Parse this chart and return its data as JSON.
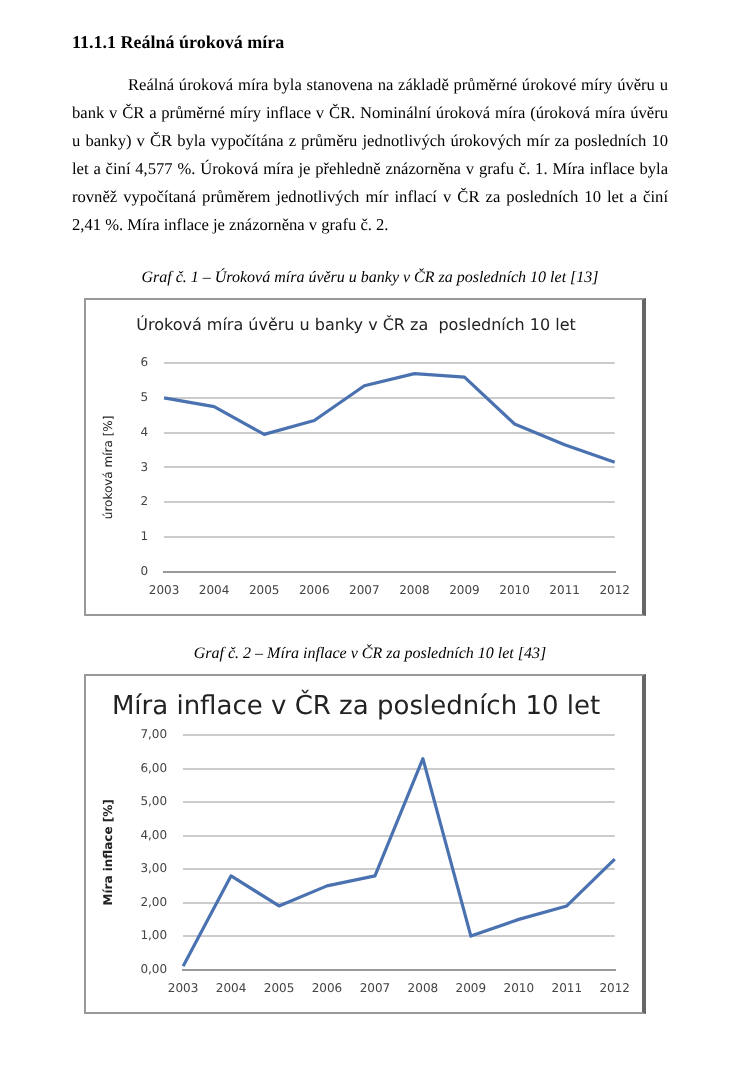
{
  "chart_data": [
    {
      "type": "line",
      "title": "Úroková míra úvěru u banky v ČR za  posledních 10 let",
      "ylabel": "úroková míra [%]",
      "annotations": [
        "11.1.1 Reálná úroková míra",
        "Reálná úroková míra byla stanovena na základě průměrné úrokové míry úvěru u bank v ČR a průměrné míry inflace v ČR. Nominální úroková míra (úroková míra úvěru u banky) v ČR byla vypočítána z průměru jednotlivých úrokových mír za posledních 10 let a činí 4,577 %. Úroková míra je přehledně znázorněna v grafu č. 1. Míra inflace byla rovněž vypočítaná průměrem jednotlivých mír inflací v ČR za posledních 10 let a činí 2,41 %. Míra inflace je znázorněna v grafu č. 2.",
        "Graf č. 1 – Úroková míra úvěru u banky v ČR za posledních 10 let [13]"
      ],
      "categories": [
        "2003",
        "2004",
        "2005",
        "2006",
        "2007",
        "2008",
        "2009",
        "2010",
        "2011",
        "2012"
      ],
      "series": [
        {
          "color": "#4a72b0",
          "values": [
            5.0,
            4.75,
            3.95,
            4.35,
            5.35,
            5.7,
            5.6,
            4.25,
            3.65,
            3.15
          ]
        }
      ],
      "ylim": [
        0,
        6
      ],
      "yticks": [
        0,
        1,
        2,
        3,
        4,
        5,
        6
      ],
      "grid": "y",
      "marker": "none"
    },
    {
      "type": "line",
      "title": "Míra inflace v ČR za posledních 10 let",
      "ylabel": "Míra inflace [%]",
      "annotations": [
        "Graf č. 2 – Míra inflace v ČR za posledních 10 let [43]"
      ],
      "categories": [
        "2003",
        "2004",
        "2005",
        "2006",
        "2007",
        "2008",
        "2009",
        "2010",
        "2011",
        "2012"
      ],
      "series": [
        {
          "color": "#4a72b0",
          "values": [
            0.1,
            2.8,
            1.9,
            2.5,
            2.8,
            6.3,
            1.0,
            1.5,
            1.9,
            3.3
          ]
        }
      ],
      "ylim": [
        0,
        7
      ],
      "yticks": [
        {
          "value": 0,
          "label": "0,00"
        },
        {
          "value": 1,
          "label": "1,00"
        },
        {
          "value": 2,
          "label": "2,00"
        },
        {
          "value": 3,
          "label": "3,00"
        },
        {
          "value": 4,
          "label": "4,00"
        },
        {
          "value": 5,
          "label": "5,00"
        },
        {
          "value": 6,
          "label": "6,00"
        },
        {
          "value": 7,
          "label": "7,00"
        }
      ],
      "grid": "y",
      "marker": "none"
    }
  ]
}
